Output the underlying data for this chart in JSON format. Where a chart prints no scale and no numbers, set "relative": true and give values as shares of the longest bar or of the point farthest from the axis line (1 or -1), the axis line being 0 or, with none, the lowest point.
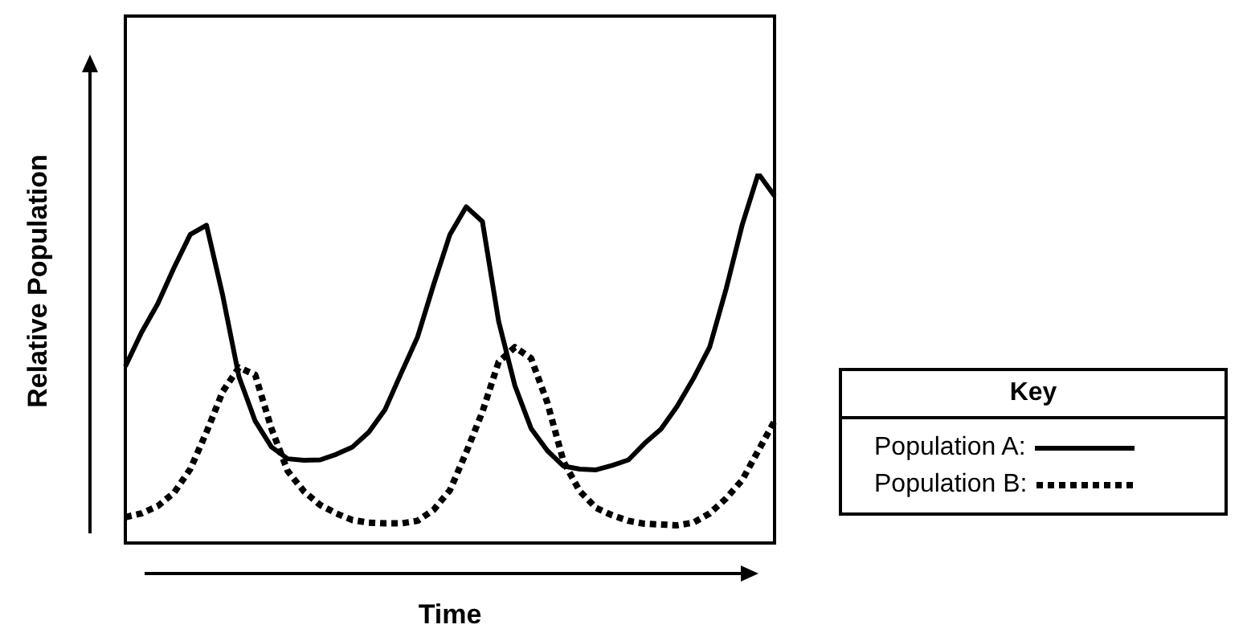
{
  "chart_data": {
    "type": "line",
    "xlabel": "Time",
    "ylabel": "Relative Population",
    "legend_title": "Key",
    "legend": "right",
    "relative": true,
    "categories": [
      null,
      null,
      null,
      null,
      null,
      null,
      null,
      null,
      null,
      null,
      null,
      null,
      null,
      null,
      null,
      null,
      null,
      null,
      null,
      null,
      null,
      null,
      null,
      null,
      null,
      null,
      null,
      null,
      null,
      null,
      null,
      null,
      null,
      null,
      null,
      null,
      null,
      null,
      null,
      null,
      null
    ],
    "series": [
      {
        "name": "Population A:",
        "color": "#000000",
        "line_style": "solid",
        "values": [
          0.478,
          0.57,
          0.648,
          0.745,
          0.835,
          0.86,
          0.67,
          0.45,
          0.33,
          0.26,
          0.228,
          0.224,
          0.225,
          0.24,
          0.26,
          0.3,
          0.361,
          0.46,
          0.557,
          0.7,
          0.835,
          0.91,
          0.87,
          0.6,
          0.426,
          0.31,
          0.25,
          0.208,
          0.2,
          0.198,
          0.21,
          0.225,
          0.27,
          0.308,
          0.37,
          0.445,
          0.53,
          0.685,
          0.86,
          1,
          0.939
        ]
      },
      {
        "name": "Population B:",
        "color": "#000000",
        "line_style": "dotted",
        "values": [
          0.07,
          0.08,
          0.1,
          0.136,
          0.2,
          0.3,
          0.41,
          0.475,
          0.455,
          0.31,
          0.195,
          0.14,
          0.103,
          0.08,
          0.062,
          0.055,
          0.053,
          0.053,
          0.06,
          0.09,
          0.143,
          0.245,
          0.355,
          0.49,
          0.53,
          0.5,
          0.38,
          0.22,
          0.14,
          0.095,
          0.075,
          0.06,
          0.052,
          0.05,
          0.048,
          0.055,
          0.08,
          0.12,
          0.17,
          0.25,
          0.33
        ]
      }
    ]
  }
}
